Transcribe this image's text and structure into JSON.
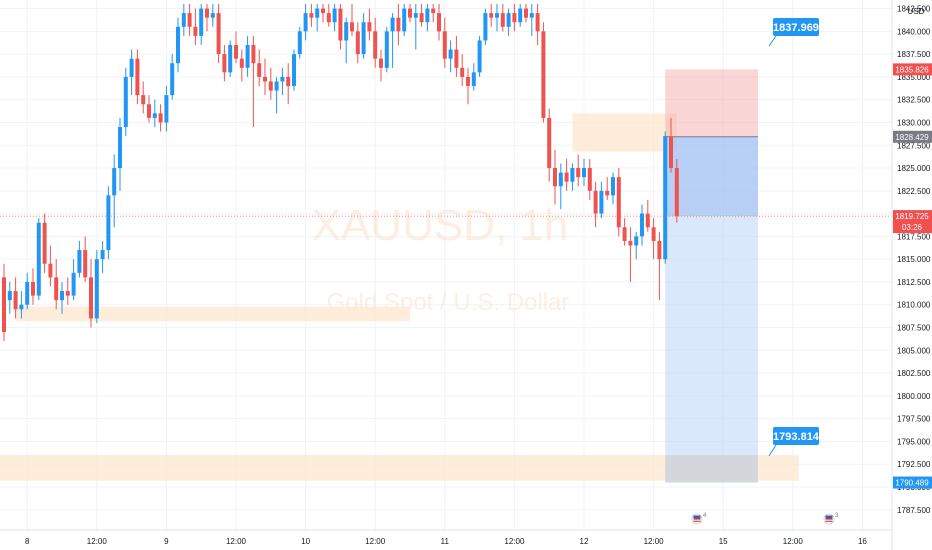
{
  "chart_data": {
    "type": "candlestick",
    "watermark": {
      "symbol": "XAUUSD, 1h",
      "description": "Gold Spot / U.S. Dollar"
    },
    "currency": "USD",
    "y_axis": {
      "min": 1785.5,
      "max": 1843.0,
      "ticks": [
        "1787.500",
        "1790.000",
        "1792.500",
        "1795.000",
        "1797.500",
        "1800.000",
        "1802.500",
        "1805.000",
        "1807.500",
        "1810.000",
        "1812.500",
        "1815.000",
        "1817.500",
        "1820.000",
        "1822.500",
        "1825.000",
        "1827.500",
        "1830.000",
        "1832.500",
        "1835.000",
        "1837.500",
        "1840.000",
        "1842.500"
      ]
    },
    "x_axis": {
      "labels": [
        {
          "text": "8",
          "bar": 4
        },
        {
          "text": "12:00",
          "bar": 16
        },
        {
          "text": "9",
          "bar": 28
        },
        {
          "text": "12:00",
          "bar": 40
        },
        {
          "text": "10",
          "bar": 52
        },
        {
          "text": "12:00",
          "bar": 64
        },
        {
          "text": "11",
          "bar": 76
        },
        {
          "text": "12:00",
          "bar": 88
        },
        {
          "text": "12",
          "bar": 100
        },
        {
          "text": "12:00",
          "bar": 112
        },
        {
          "text": "15",
          "bar": 124
        },
        {
          "text": "12:00",
          "bar": 136
        },
        {
          "text": "16",
          "bar": 148
        }
      ]
    },
    "price_labels": {
      "current": {
        "value": "1819.725",
        "countdown": "03:26"
      },
      "entry": "1828.429",
      "stop": "1835.826",
      "target": "1790.489"
    },
    "callouts": [
      {
        "text": "1837.969",
        "value": 1837.969
      },
      {
        "text": "1793.814",
        "value": 1793.814
      }
    ],
    "zones": [
      {
        "name": "zone-low-left",
        "from_bar": 2,
        "to_bar": 70,
        "high": 1809.8,
        "low": 1808.2
      },
      {
        "name": "zone-right-top",
        "from_bar": 98,
        "to_bar": 116,
        "high": 1831.0,
        "low": 1826.8
      },
      {
        "name": "zone-bottom",
        "from_bar": -2,
        "to_bar": 137,
        "high": 1793.5,
        "low": 1790.7
      }
    ],
    "position": {
      "type": "short",
      "from_bar": 114,
      "to_bar": 130,
      "entry": 1828.429,
      "stop": 1835.826,
      "target": 1790.489,
      "current": 1819.725
    },
    "candles": [
      {
        "o": 1813.0,
        "h": 1814.5,
        "l": 1806.0,
        "c": 1807.0
      },
      {
        "o": 1810.5,
        "h": 1812.5,
        "l": 1809.0,
        "c": 1811.5
      },
      {
        "o": 1811.5,
        "h": 1813.0,
        "l": 1808.5,
        "c": 1809.5
      },
      {
        "o": 1809.5,
        "h": 1811.5,
        "l": 1808.5,
        "c": 1810.0
      },
      {
        "o": 1810.0,
        "h": 1813.5,
        "l": 1809.5,
        "c": 1812.5
      },
      {
        "o": 1812.5,
        "h": 1814.0,
        "l": 1810.0,
        "c": 1811.0
      },
      {
        "o": 1811.0,
        "h": 1819.5,
        "l": 1810.5,
        "c": 1819.0
      },
      {
        "o": 1819.0,
        "h": 1820.0,
        "l": 1813.5,
        "c": 1814.5
      },
      {
        "o": 1814.5,
        "h": 1816.5,
        "l": 1812.0,
        "c": 1813.0
      },
      {
        "o": 1813.0,
        "h": 1815.0,
        "l": 1809.5,
        "c": 1810.5
      },
      {
        "o": 1810.5,
        "h": 1812.5,
        "l": 1809.0,
        "c": 1811.5
      },
      {
        "o": 1811.5,
        "h": 1813.0,
        "l": 1810.0,
        "c": 1811.0
      },
      {
        "o": 1811.0,
        "h": 1815.0,
        "l": 1810.5,
        "c": 1813.5
      },
      {
        "o": 1813.5,
        "h": 1817.0,
        "l": 1813.0,
        "c": 1816.0
      },
      {
        "o": 1816.0,
        "h": 1817.5,
        "l": 1812.5,
        "c": 1813.0
      },
      {
        "o": 1813.0,
        "h": 1815.0,
        "l": 1807.5,
        "c": 1808.5
      },
      {
        "o": 1808.5,
        "h": 1816.0,
        "l": 1808.0,
        "c": 1815.0
      },
      {
        "o": 1815.0,
        "h": 1817.0,
        "l": 1813.5,
        "c": 1816.0
      },
      {
        "o": 1816.0,
        "h": 1823.0,
        "l": 1815.0,
        "c": 1822.0
      },
      {
        "o": 1822.0,
        "h": 1826.5,
        "l": 1818.5,
        "c": 1825.0
      },
      {
        "o": 1825.0,
        "h": 1830.5,
        "l": 1822.5,
        "c": 1829.5
      },
      {
        "o": 1829.5,
        "h": 1836.0,
        "l": 1828.5,
        "c": 1835.0
      },
      {
        "o": 1835.0,
        "h": 1838.0,
        "l": 1833.0,
        "c": 1837.0
      },
      {
        "o": 1837.0,
        "h": 1838.0,
        "l": 1832.0,
        "c": 1833.0
      },
      {
        "o": 1833.0,
        "h": 1834.5,
        "l": 1831.0,
        "c": 1832.0
      },
      {
        "o": 1832.0,
        "h": 1833.0,
        "l": 1830.0,
        "c": 1830.5
      },
      {
        "o": 1830.5,
        "h": 1832.5,
        "l": 1829.5,
        "c": 1831.0
      },
      {
        "o": 1831.0,
        "h": 1832.0,
        "l": 1829.0,
        "c": 1830.0
      },
      {
        "o": 1830.0,
        "h": 1834.0,
        "l": 1829.0,
        "c": 1833.0
      },
      {
        "o": 1833.0,
        "h": 1837.5,
        "l": 1832.5,
        "c": 1836.5
      },
      {
        "o": 1836.5,
        "h": 1841.5,
        "l": 1835.5,
        "c": 1840.5
      },
      {
        "o": 1840.5,
        "h": 1843.0,
        "l": 1839.5,
        "c": 1842.0
      },
      {
        "o": 1842.0,
        "h": 1843.0,
        "l": 1839.5,
        "c": 1840.5
      },
      {
        "o": 1840.5,
        "h": 1842.5,
        "l": 1838.5,
        "c": 1839.5
      },
      {
        "o": 1839.5,
        "h": 1843.0,
        "l": 1838.5,
        "c": 1842.5
      },
      {
        "o": 1842.5,
        "h": 1843.0,
        "l": 1840.0,
        "c": 1841.5
      },
      {
        "o": 1841.5,
        "h": 1843.0,
        "l": 1840.5,
        "c": 1842.0
      },
      {
        "o": 1842.0,
        "h": 1843.0,
        "l": 1836.5,
        "c": 1837.5
      },
      {
        "o": 1837.5,
        "h": 1838.5,
        "l": 1834.5,
        "c": 1835.5
      },
      {
        "o": 1835.5,
        "h": 1839.0,
        "l": 1835.0,
        "c": 1838.5
      },
      {
        "o": 1838.5,
        "h": 1840.0,
        "l": 1836.5,
        "c": 1837.0
      },
      {
        "o": 1837.0,
        "h": 1838.0,
        "l": 1834.5,
        "c": 1836.0
      },
      {
        "o": 1836.0,
        "h": 1839.5,
        "l": 1835.0,
        "c": 1838.5
      },
      {
        "o": 1838.5,
        "h": 1839.5,
        "l": 1829.5,
        "c": 1836.5
      },
      {
        "o": 1836.5,
        "h": 1838.0,
        "l": 1834.0,
        "c": 1835.0
      },
      {
        "o": 1835.0,
        "h": 1837.0,
        "l": 1833.0,
        "c": 1834.5
      },
      {
        "o": 1834.5,
        "h": 1836.0,
        "l": 1832.5,
        "c": 1833.5
      },
      {
        "o": 1833.5,
        "h": 1835.0,
        "l": 1831.0,
        "c": 1834.5
      },
      {
        "o": 1834.5,
        "h": 1836.0,
        "l": 1833.0,
        "c": 1835.0
      },
      {
        "o": 1835.0,
        "h": 1836.5,
        "l": 1832.0,
        "c": 1834.0
      },
      {
        "o": 1834.0,
        "h": 1838.0,
        "l": 1833.5,
        "c": 1837.5
      },
      {
        "o": 1837.5,
        "h": 1840.5,
        "l": 1837.0,
        "c": 1840.0
      },
      {
        "o": 1840.0,
        "h": 1843.0,
        "l": 1839.0,
        "c": 1842.0
      },
      {
        "o": 1842.0,
        "h": 1843.0,
        "l": 1840.5,
        "c": 1841.5
      },
      {
        "o": 1841.5,
        "h": 1843.0,
        "l": 1840.0,
        "c": 1842.5
      },
      {
        "o": 1842.5,
        "h": 1843.0,
        "l": 1841.0,
        "c": 1842.0
      },
      {
        "o": 1842.0,
        "h": 1843.0,
        "l": 1840.5,
        "c": 1841.0
      },
      {
        "o": 1841.0,
        "h": 1843.0,
        "l": 1840.0,
        "c": 1842.5
      },
      {
        "o": 1842.5,
        "h": 1843.0,
        "l": 1838.0,
        "c": 1839.0
      },
      {
        "o": 1839.0,
        "h": 1841.5,
        "l": 1836.5,
        "c": 1841.0
      },
      {
        "o": 1841.0,
        "h": 1843.0,
        "l": 1839.5,
        "c": 1840.0
      },
      {
        "o": 1840.0,
        "h": 1841.0,
        "l": 1836.5,
        "c": 1837.5
      },
      {
        "o": 1837.5,
        "h": 1842.0,
        "l": 1837.0,
        "c": 1841.0
      },
      {
        "o": 1841.0,
        "h": 1842.5,
        "l": 1839.0,
        "c": 1840.0
      },
      {
        "o": 1840.0,
        "h": 1841.5,
        "l": 1836.0,
        "c": 1837.0
      },
      {
        "o": 1837.0,
        "h": 1838.0,
        "l": 1834.5,
        "c": 1836.0
      },
      {
        "o": 1836.0,
        "h": 1840.5,
        "l": 1835.5,
        "c": 1840.0
      },
      {
        "o": 1840.0,
        "h": 1842.0,
        "l": 1836.0,
        "c": 1841.5
      },
      {
        "o": 1841.5,
        "h": 1843.0,
        "l": 1838.5,
        "c": 1840.0
      },
      {
        "o": 1840.0,
        "h": 1843.0,
        "l": 1839.5,
        "c": 1842.5
      },
      {
        "o": 1842.5,
        "h": 1843.0,
        "l": 1841.0,
        "c": 1841.5
      },
      {
        "o": 1841.5,
        "h": 1843.0,
        "l": 1838.0,
        "c": 1842.0
      },
      {
        "o": 1842.0,
        "h": 1843.0,
        "l": 1840.5,
        "c": 1841.0
      },
      {
        "o": 1841.0,
        "h": 1843.0,
        "l": 1840.0,
        "c": 1842.5
      },
      {
        "o": 1842.5,
        "h": 1843.0,
        "l": 1841.0,
        "c": 1842.0
      },
      {
        "o": 1842.0,
        "h": 1843.0,
        "l": 1839.0,
        "c": 1840.0
      },
      {
        "o": 1840.0,
        "h": 1841.5,
        "l": 1836.0,
        "c": 1837.0
      },
      {
        "o": 1837.0,
        "h": 1839.0,
        "l": 1835.5,
        "c": 1838.0
      },
      {
        "o": 1838.0,
        "h": 1839.5,
        "l": 1835.0,
        "c": 1836.0
      },
      {
        "o": 1836.0,
        "h": 1837.5,
        "l": 1834.0,
        "c": 1835.0
      },
      {
        "o": 1835.0,
        "h": 1836.0,
        "l": 1832.0,
        "c": 1834.0
      },
      {
        "o": 1834.0,
        "h": 1836.5,
        "l": 1833.5,
        "c": 1835.5
      },
      {
        "o": 1835.5,
        "h": 1839.5,
        "l": 1835.0,
        "c": 1839.0
      },
      {
        "o": 1839.0,
        "h": 1842.5,
        "l": 1838.5,
        "c": 1842.0
      },
      {
        "o": 1842.0,
        "h": 1843.0,
        "l": 1840.5,
        "c": 1841.5
      },
      {
        "o": 1841.5,
        "h": 1843.0,
        "l": 1840.0,
        "c": 1842.0
      },
      {
        "o": 1842.0,
        "h": 1843.0,
        "l": 1840.0,
        "c": 1840.5
      },
      {
        "o": 1840.5,
        "h": 1842.5,
        "l": 1839.5,
        "c": 1842.0
      },
      {
        "o": 1842.0,
        "h": 1843.0,
        "l": 1840.0,
        "c": 1841.0
      },
      {
        "o": 1841.0,
        "h": 1843.0,
        "l": 1840.5,
        "c": 1842.5
      },
      {
        "o": 1842.5,
        "h": 1843.0,
        "l": 1841.0,
        "c": 1841.5
      },
      {
        "o": 1841.5,
        "h": 1843.0,
        "l": 1839.5,
        "c": 1842.0
      },
      {
        "o": 1842.0,
        "h": 1843.0,
        "l": 1838.5,
        "c": 1840.0
      },
      {
        "o": 1840.0,
        "h": 1841.0,
        "l": 1830.0,
        "c": 1830.5
      },
      {
        "o": 1830.5,
        "h": 1831.5,
        "l": 1823.5,
        "c": 1825.0
      },
      {
        "o": 1825.0,
        "h": 1827.0,
        "l": 1821.0,
        "c": 1823.0
      },
      {
        "o": 1823.0,
        "h": 1825.5,
        "l": 1820.5,
        "c": 1824.5
      },
      {
        "o": 1824.5,
        "h": 1826.0,
        "l": 1822.5,
        "c": 1823.5
      },
      {
        "o": 1823.5,
        "h": 1825.5,
        "l": 1822.5,
        "c": 1825.0
      },
      {
        "o": 1825.0,
        "h": 1826.5,
        "l": 1823.0,
        "c": 1824.0
      },
      {
        "o": 1824.0,
        "h": 1826.0,
        "l": 1823.0,
        "c": 1825.0
      },
      {
        "o": 1825.0,
        "h": 1826.0,
        "l": 1821.5,
        "c": 1822.5
      },
      {
        "o": 1822.5,
        "h": 1823.5,
        "l": 1818.5,
        "c": 1820.0
      },
      {
        "o": 1820.0,
        "h": 1823.5,
        "l": 1819.5,
        "c": 1822.5
      },
      {
        "o": 1822.5,
        "h": 1824.0,
        "l": 1821.5,
        "c": 1822.0
      },
      {
        "o": 1822.0,
        "h": 1824.5,
        "l": 1821.0,
        "c": 1824.0
      },
      {
        "o": 1824.0,
        "h": 1825.0,
        "l": 1817.5,
        "c": 1818.5
      },
      {
        "o": 1818.5,
        "h": 1819.5,
        "l": 1816.5,
        "c": 1817.0
      },
      {
        "o": 1817.0,
        "h": 1818.5,
        "l": 1812.5,
        "c": 1816.5
      },
      {
        "o": 1816.5,
        "h": 1818.0,
        "l": 1815.0,
        "c": 1817.5
      },
      {
        "o": 1817.5,
        "h": 1821.0,
        "l": 1816.5,
        "c": 1820.0
      },
      {
        "o": 1820.0,
        "h": 1821.5,
        "l": 1818.0,
        "c": 1818.5
      },
      {
        "o": 1818.5,
        "h": 1819.5,
        "l": 1815.0,
        "c": 1817.0
      },
      {
        "o": 1817.0,
        "h": 1818.0,
        "l": 1810.5,
        "c": 1815.0
      },
      {
        "o": 1815.0,
        "h": 1829.0,
        "l": 1814.5,
        "c": 1828.5
      },
      {
        "o": 1828.5,
        "h": 1830.5,
        "l": 1824.5,
        "c": 1825.0
      },
      {
        "o": 1825.0,
        "h": 1826.0,
        "l": 1819.0,
        "c": 1819.7
      }
    ]
  }
}
